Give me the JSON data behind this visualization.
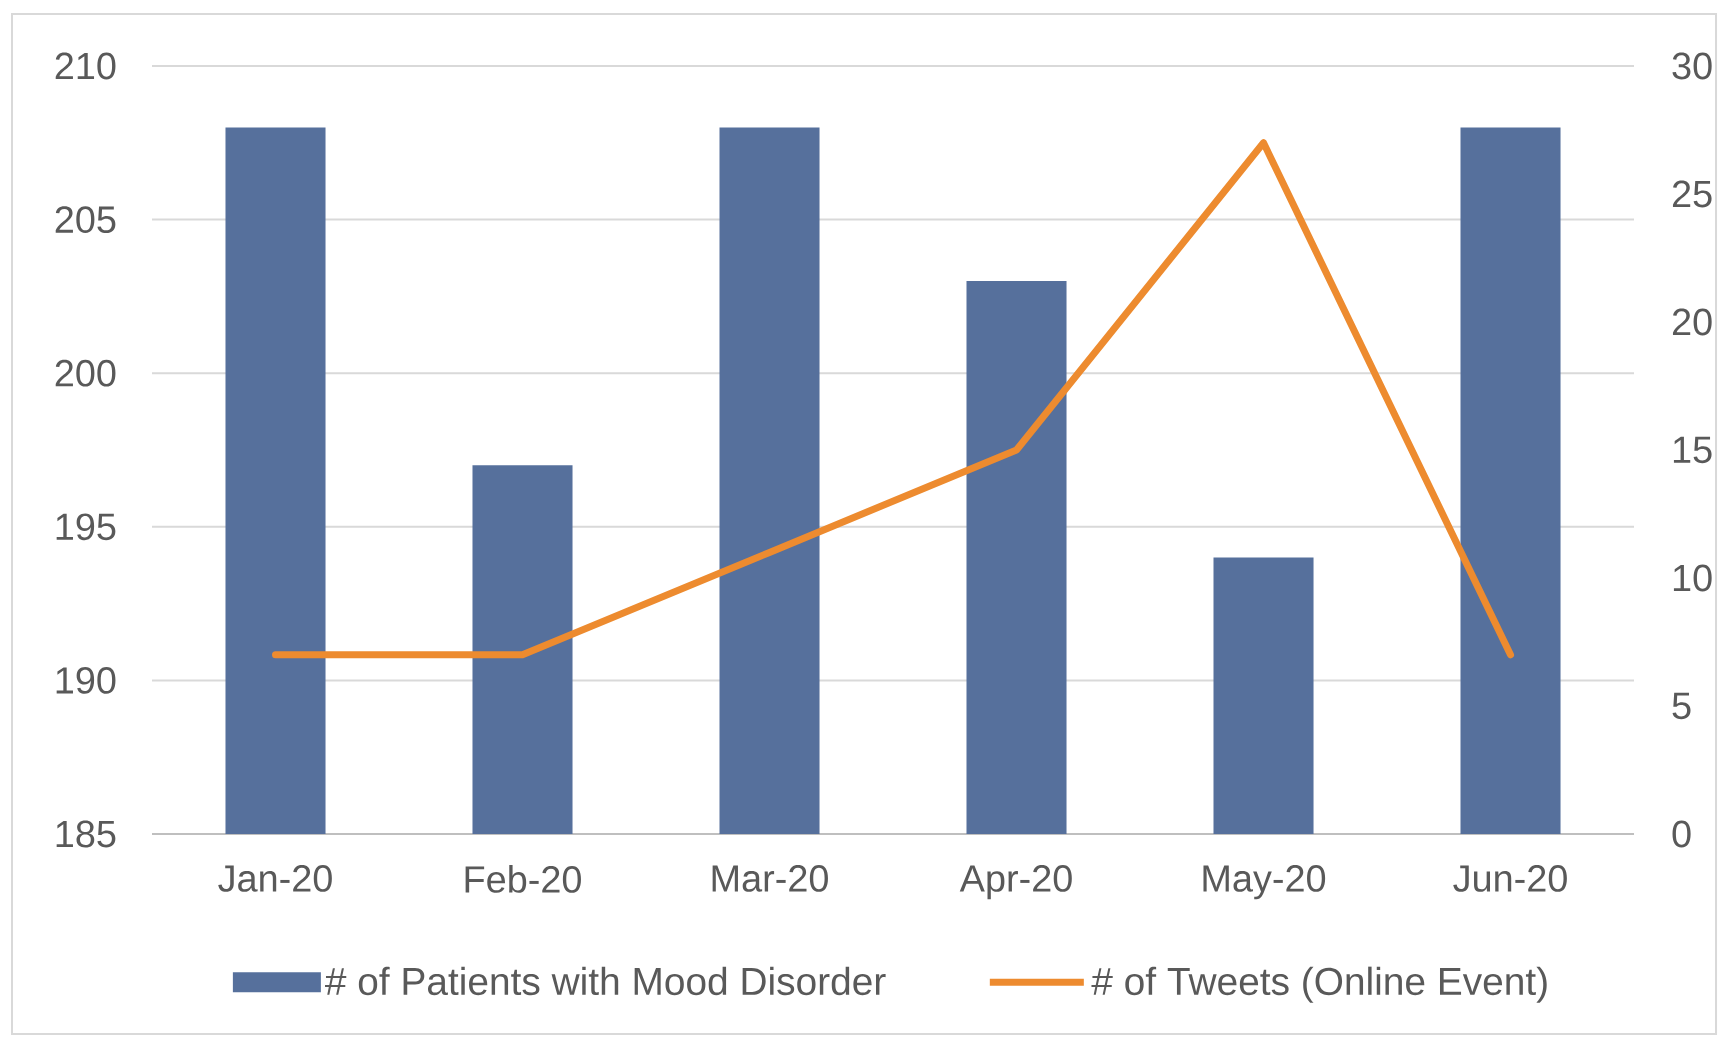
{
  "chart_data": {
    "type": "bar",
    "categories": [
      "Jan-20",
      "Feb-20",
      "Mar-20",
      "Apr-20",
      "May-20",
      "Jun-20"
    ],
    "series": [
      {
        "name": "# of Patients with Mood Disorder",
        "color": "#56709c",
        "values": [
          208,
          197,
          208,
          203,
          194,
          208
        ]
      },
      {
        "name": "# of Tweets (Online Event)",
        "type": "line",
        "axis": "y2",
        "color": "#ed8b2f",
        "values": [
          7,
          7,
          11,
          15,
          27,
          7
        ]
      }
    ],
    "ylim": [
      185,
      210
    ],
    "yticks": [
      185,
      190,
      195,
      200,
      205,
      210
    ],
    "y2lim": [
      0,
      30
    ],
    "y2ticks": [
      0,
      5,
      10,
      15,
      20,
      25,
      30
    ],
    "grid": "y",
    "legend": "bottom",
    "marker": "none",
    "line_style": "solid"
  }
}
